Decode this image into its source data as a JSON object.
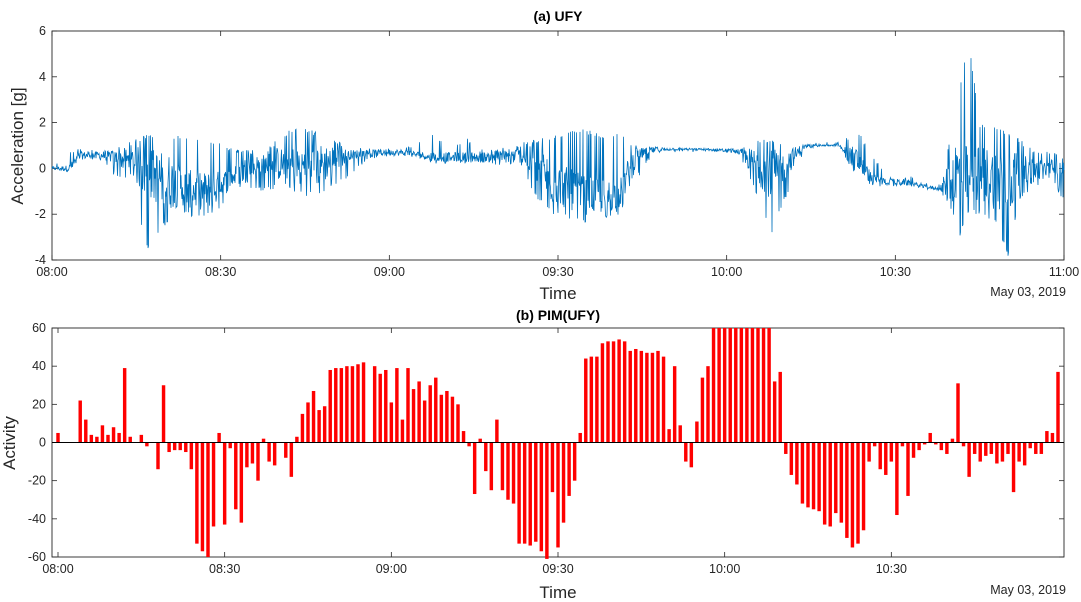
{
  "chart_data": [
    {
      "type": "line",
      "title": "(a) UFY",
      "xlabel": "Time",
      "ylabel": "Acceleration [g]",
      "date_label": "May 03, 2019",
      "xlim": [
        "08:00",
        "11:00"
      ],
      "ylim": [
        -4,
        6
      ],
      "x_ticks": [
        "08:00",
        "08:30",
        "09:00",
        "09:30",
        "10:00",
        "10:30",
        "11:00"
      ],
      "y_ticks": [
        -4,
        -2,
        0,
        2,
        4,
        6
      ],
      "series": [
        {
          "color": "#0072BD",
          "x_unit": "minutes after 08:00",
          "envelope": [
            {
              "t": 0,
              "min": -0.1,
              "max": 0.1,
              "mean": 0.0
            },
            {
              "t": 3,
              "min": -0.2,
              "max": 0.8,
              "mean": 0.0
            },
            {
              "t": 5,
              "min": 0.3,
              "max": 0.9,
              "mean": 0.55
            },
            {
              "t": 8,
              "min": 0.4,
              "max": 0.8,
              "mean": 0.6
            },
            {
              "t": 11,
              "min": -0.3,
              "max": 0.9,
              "mean": 0.5
            },
            {
              "t": 14,
              "min": -0.5,
              "max": 1.2,
              "mean": 0.3
            },
            {
              "t": 17,
              "min": -3.6,
              "max": 1.5,
              "mean": -0.2
            },
            {
              "t": 20,
              "min": -2.5,
              "max": 1.2,
              "mean": -0.5
            },
            {
              "t": 23,
              "min": -2.0,
              "max": 1.5,
              "mean": -0.8
            },
            {
              "t": 26,
              "min": -2.2,
              "max": 1.3,
              "mean": -1.0
            },
            {
              "t": 29,
              "min": -2.0,
              "max": 1.2,
              "mean": -0.9
            },
            {
              "t": 32,
              "min": -1.0,
              "max": 0.9,
              "mean": -0.4
            },
            {
              "t": 35,
              "min": -0.9,
              "max": 0.8,
              "mean": 0.0
            },
            {
              "t": 38,
              "min": -1.0,
              "max": 0.8,
              "mean": 0.2
            },
            {
              "t": 41,
              "min": -0.8,
              "max": 1.5,
              "mean": 0.2
            },
            {
              "t": 44,
              "min": -1.2,
              "max": 1.9,
              "mean": 0.1
            },
            {
              "t": 47,
              "min": -1.2,
              "max": 1.6,
              "mean": 0.1
            },
            {
              "t": 50,
              "min": -0.8,
              "max": 1.3,
              "mean": 0.4
            },
            {
              "t": 53,
              "min": -0.4,
              "max": 0.9,
              "mean": 0.6
            },
            {
              "t": 56,
              "min": 0.4,
              "max": 0.9,
              "mean": 0.65
            },
            {
              "t": 59,
              "min": 0.5,
              "max": 0.9,
              "mean": 0.7
            },
            {
              "t": 62,
              "min": 0.5,
              "max": 0.9,
              "mean": 0.7
            },
            {
              "t": 65,
              "min": 0.4,
              "max": 1.1,
              "mean": 0.6
            },
            {
              "t": 68,
              "min": 0.2,
              "max": 1.5,
              "mean": 0.5
            },
            {
              "t": 71,
              "min": 0.2,
              "max": 1.1,
              "mean": 0.5
            },
            {
              "t": 74,
              "min": 0.2,
              "max": 1.3,
              "mean": 0.5
            },
            {
              "t": 77,
              "min": 0.1,
              "max": 0.8,
              "mean": 0.5
            },
            {
              "t": 80,
              "min": 0.1,
              "max": 0.9,
              "mean": 0.5
            },
            {
              "t": 83,
              "min": 0.2,
              "max": 1.1,
              "mean": 0.6
            },
            {
              "t": 86,
              "min": -1.3,
              "max": 1.3,
              "mean": 0.2
            },
            {
              "t": 89,
              "min": -2.0,
              "max": 1.4,
              "mean": -0.6
            },
            {
              "t": 92,
              "min": -2.2,
              "max": 1.7,
              "mean": -0.9
            },
            {
              "t": 95,
              "min": -2.4,
              "max": 1.7,
              "mean": -1.2
            },
            {
              "t": 98,
              "min": -2.3,
              "max": 1.5,
              "mean": -1.2
            },
            {
              "t": 101,
              "min": -2.0,
              "max": 1.5,
              "mean": -1.1
            },
            {
              "t": 104,
              "min": -0.5,
              "max": 1.0,
              "mean": 0.6
            },
            {
              "t": 107,
              "min": 0.6,
              "max": 1.0,
              "mean": 0.8
            },
            {
              "t": 110,
              "min": 0.7,
              "max": 0.95,
              "mean": 0.85
            },
            {
              "t": 113,
              "min": 0.7,
              "max": 0.9,
              "mean": 0.85
            },
            {
              "t": 116,
              "min": 0.7,
              "max": 0.9,
              "mean": 0.82
            },
            {
              "t": 119,
              "min": 0.7,
              "max": 0.9,
              "mean": 0.8
            },
            {
              "t": 122,
              "min": 0.6,
              "max": 0.9,
              "mean": 0.75
            },
            {
              "t": 125,
              "min": -1.0,
              "max": 1.2,
              "mean": 0.2
            },
            {
              "t": 128,
              "min": -2.9,
              "max": 1.3,
              "mean": -0.3
            },
            {
              "t": 131,
              "min": -1.0,
              "max": 1.1,
              "mean": 0.3
            },
            {
              "t": 134,
              "min": 0.9,
              "max": 1.1,
              "mean": 1.0
            },
            {
              "t": 137,
              "min": 0.95,
              "max": 1.05,
              "mean": 1.0
            },
            {
              "t": 140,
              "min": 0.95,
              "max": 1.05,
              "mean": 1.0
            },
            {
              "t": 143,
              "min": -0.4,
              "max": 1.8,
              "mean": 0.4
            },
            {
              "t": 146,
              "min": -0.8,
              "max": 0.6,
              "mean": -0.5
            },
            {
              "t": 149,
              "min": -0.8,
              "max": -0.4,
              "mean": -0.6
            },
            {
              "t": 152,
              "min": -0.8,
              "max": -0.2,
              "mean": -0.6
            },
            {
              "t": 155,
              "min": -0.9,
              "max": -0.6,
              "mean": -0.8
            },
            {
              "t": 158,
              "min": -1.0,
              "max": -0.7,
              "mean": -0.9
            },
            {
              "t": 161,
              "min": -3.3,
              "max": 2.8,
              "mean": -0.4
            },
            {
              "t": 163,
              "min": -2.0,
              "max": 5.8,
              "mean": -0.3
            },
            {
              "t": 165,
              "min": -2.0,
              "max": 2.0,
              "mean": -0.2
            },
            {
              "t": 168,
              "min": -2.4,
              "max": 1.9,
              "mean": -0.5
            },
            {
              "t": 170,
              "min": -3.9,
              "max": 1.6,
              "mean": -0.6
            },
            {
              "t": 172,
              "min": -1.4,
              "max": 1.3,
              "mean": -0.2
            },
            {
              "t": 175,
              "min": -0.8,
              "max": 0.7,
              "mean": -0.1
            },
            {
              "t": 178,
              "min": -0.6,
              "max": 0.8,
              "mean": 0.0
            },
            {
              "t": 180,
              "min": -1.5,
              "max": 0.6,
              "mean": -0.2
            }
          ]
        }
      ]
    },
    {
      "type": "bar",
      "title": "(b) PIM(UFY)",
      "xlabel": "Time",
      "ylabel": "Activity",
      "date_label": "May 03, 2019",
      "xlim": [
        "08:00",
        "11:00"
      ],
      "ylim": [
        -60,
        60
      ],
      "x_ticks": [
        "08:00",
        "08:30",
        "09:00",
        "09:30",
        "10:00",
        "10:30"
      ],
      "y_ticks": [
        -60,
        -40,
        -20,
        0,
        20,
        40,
        60
      ],
      "series": [
        {
          "color": "#FF0000",
          "x_unit": "minutes after 08:00",
          "x": [
            0,
            1,
            2,
            3,
            4,
            5,
            6,
            7,
            8,
            9,
            10,
            11,
            12,
            13,
            14,
            15,
            16,
            17,
            18,
            19,
            20,
            21,
            22,
            23,
            24,
            25,
            26,
            27,
            28,
            29,
            30,
            31,
            32,
            33,
            34,
            35,
            36,
            37,
            38,
            39,
            40,
            41,
            42,
            43,
            44,
            45,
            46,
            47,
            48,
            49,
            50,
            51,
            52,
            53,
            54,
            55,
            56,
            57,
            58,
            59,
            60,
            61,
            62,
            63,
            64,
            65,
            66,
            67,
            68,
            69,
            70,
            71,
            72,
            73,
            74,
            75,
            76,
            77,
            78,
            79,
            80,
            81,
            82,
            83,
            84,
            85,
            86,
            87,
            88,
            89,
            90,
            91,
            92,
            93,
            94,
            95,
            96,
            97,
            98,
            99,
            100,
            101,
            102,
            103,
            104,
            105,
            106,
            107,
            108,
            109,
            110,
            111,
            112,
            113,
            114,
            115,
            116,
            117,
            118,
            119,
            120,
            121,
            122,
            123,
            124,
            125,
            126,
            127,
            128,
            129,
            130,
            131,
            132,
            133,
            134,
            135,
            136,
            137,
            138,
            139,
            140,
            141,
            142,
            143,
            144,
            145,
            146,
            147,
            148,
            149,
            150,
            151,
            152,
            153,
            154,
            155,
            156,
            157,
            158,
            159,
            160,
            161,
            162,
            163,
            164,
            165,
            166,
            167,
            168,
            169,
            170,
            171,
            172,
            173,
            174,
            175,
            176,
            177,
            178,
            179,
            180
          ],
          "values": [
            5,
            0,
            0,
            0,
            22,
            12,
            4,
            3,
            9,
            4,
            8,
            5,
            39,
            3,
            0,
            4,
            -2,
            0,
            -14,
            30,
            -5,
            -4,
            -4,
            -5,
            -14,
            -53,
            -57,
            -60,
            -44,
            5,
            -43,
            -3,
            -35,
            -42,
            -13,
            -11,
            -20,
            2,
            -10,
            -12,
            0,
            -8,
            -18,
            3,
            15,
            21,
            27,
            17,
            19,
            38,
            39,
            39,
            40,
            40,
            41,
            42,
            0,
            40,
            36,
            38,
            21,
            39,
            12,
            39,
            28,
            32,
            22,
            30,
            34,
            25,
            27,
            24,
            20,
            6,
            -2,
            -27,
            2,
            -15,
            -25,
            12,
            -25,
            -30,
            -32,
            -53,
            -53,
            -54,
            -52,
            -57,
            -61,
            -26,
            -55,
            -42,
            -28,
            -20,
            5,
            44,
            45,
            45,
            52,
            53,
            53,
            54,
            53,
            48,
            49,
            48,
            47,
            47,
            48,
            45,
            7,
            40,
            9,
            -10,
            -13,
            11,
            34,
            40,
            60,
            60,
            60,
            60,
            60,
            60,
            60,
            60,
            60,
            60,
            60,
            32,
            37,
            -6,
            -17,
            -22,
            -32,
            -34,
            -35,
            -36,
            -43,
            -44,
            -37,
            -42,
            -50,
            -55,
            -53,
            -46,
            -10,
            -2,
            -14,
            -17,
            -10,
            -38,
            -2,
            -28,
            -8,
            -4,
            -1,
            5,
            -1,
            -4,
            -6,
            2,
            31,
            -2,
            -18,
            -6,
            -10,
            -7,
            -6,
            -11,
            -10,
            -6,
            -26,
            -10,
            -12,
            -3,
            -6,
            -6,
            6,
            5,
            37
          ]
        }
      ]
    }
  ]
}
